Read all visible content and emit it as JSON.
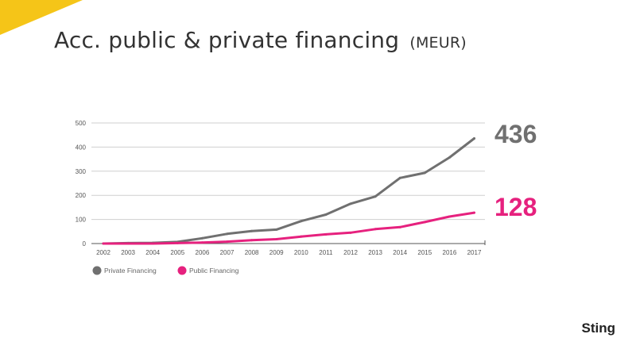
{
  "slide": {
    "title": "Acc. public & private financing",
    "title_unit": "(MEUR)",
    "brand": "Sting",
    "accent_color": "#F5C518"
  },
  "chart_data": {
    "type": "line",
    "title": "Acc. public & private financing (MEUR)",
    "xlabel": "",
    "ylabel": "",
    "x": [
      "2002",
      "2003",
      "2004",
      "2005",
      "2006",
      "2007",
      "2008",
      "2009",
      "2010",
      "2011",
      "2012",
      "2013",
      "2014",
      "2015",
      "2016",
      "2017"
    ],
    "y_ticks": [
      "0",
      "100",
      "200",
      "300",
      "400",
      "500"
    ],
    "ylim": [
      0,
      500
    ],
    "grid": true,
    "legend_position": "bottom-left",
    "series": [
      {
        "name": "Private Financing",
        "color": "#707070",
        "values": [
          0,
          2,
          3,
          7,
          22,
          40,
          52,
          58,
          93,
          120,
          165,
          195,
          272,
          293,
          357,
          436
        ],
        "end_label": "436"
      },
      {
        "name": "Public Financing",
        "color": "#E6217E",
        "values": [
          0,
          0,
          0,
          2,
          4,
          8,
          14,
          18,
          29,
          38,
          45,
          60,
          68,
          89,
          112,
          128
        ],
        "end_label": "128"
      }
    ]
  }
}
